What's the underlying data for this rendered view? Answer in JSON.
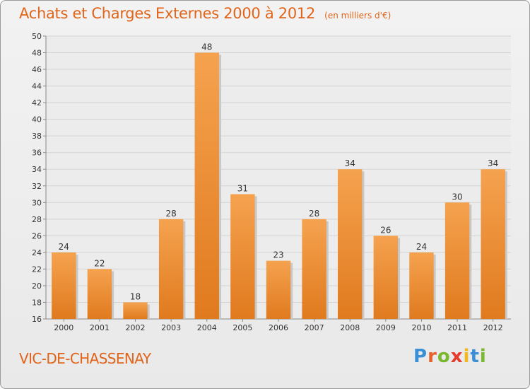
{
  "chart_data": {
    "type": "bar",
    "title": "Achats et Charges Externes 2000 à 2012",
    "subtitle": "(en milliers d'€)",
    "categories": [
      "2000",
      "2001",
      "2002",
      "2003",
      "2004",
      "2005",
      "2006",
      "2007",
      "2008",
      "2009",
      "2010",
      "2011",
      "2012"
    ],
    "values": [
      24,
      22,
      18,
      28,
      48,
      31,
      23,
      28,
      34,
      26,
      24,
      30,
      34
    ],
    "ylim": [
      16,
      50
    ],
    "yticks": [
      16,
      18,
      20,
      22,
      24,
      26,
      28,
      30,
      32,
      34,
      36,
      38,
      40,
      42,
      44,
      46,
      48,
      50
    ],
    "grid": true,
    "bar_color_top": "#f5a24f",
    "bar_color_bottom": "#e07a1e",
    "accent_color": "#e0641a"
  },
  "footer": {
    "commune": "VIC-DE-CHASSENAY",
    "brand": "Proxiti",
    "brand_colors": [
      "#3a8fd6",
      "#e8612a",
      "#7ab82e",
      "#e63a2a",
      "#f2b81e",
      "#3a8fd6",
      "#7ab82e"
    ]
  }
}
